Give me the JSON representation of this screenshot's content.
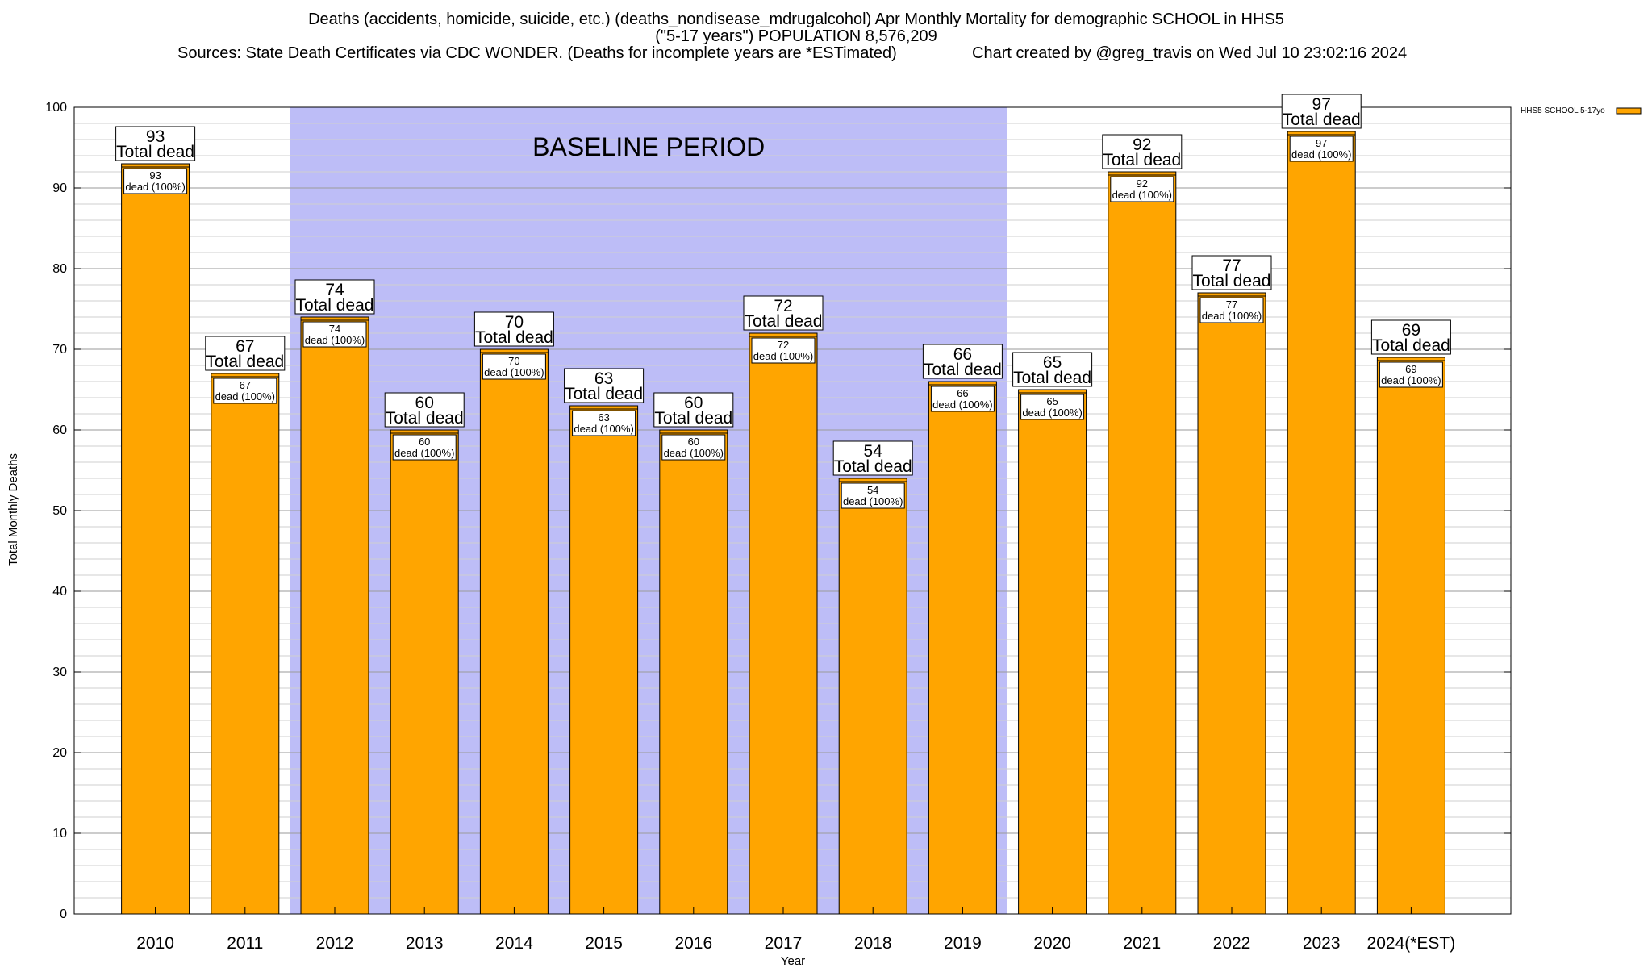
{
  "chart_data": {
    "type": "bar",
    "title_lines": [
      "Deaths (accidents, homicide, suicide, etc.) (deaths_nondisease_mdrugalcohol) Apr Monthly Mortality for demographic SCHOOL in HHS5",
      "(\"5-17 years\") POPULATION 8,576,209"
    ],
    "sources": "Sources: State Death Certificates via CDC WONDER. (Deaths for incomplete years are *ESTimated)",
    "created": "Chart created by @greg_travis on Wed Jul 10 23:02:16 2024",
    "xlabel": "Year",
    "ylabel": "Total Monthly Deaths",
    "ylim": [
      0,
      100
    ],
    "yticks": [
      0,
      10,
      20,
      30,
      40,
      50,
      60,
      70,
      80,
      90,
      100
    ],
    "grid": true,
    "categories": [
      "2010",
      "2011",
      "2012",
      "2013",
      "2014",
      "2015",
      "2016",
      "2017",
      "2018",
      "2019",
      "2020",
      "2021",
      "2022",
      "2023",
      "2024(*EST)"
    ],
    "series": [
      {
        "name": "HHS5 SCHOOL 5-17yo",
        "color": "#ffa500",
        "values": [
          93,
          67,
          74,
          60,
          70,
          63,
          60,
          72,
          54,
          66,
          65,
          92,
          77,
          97,
          69
        ]
      }
    ],
    "top_label_text": "Total dead",
    "inner_label_text": "dead (100%)",
    "baseline_band": {
      "label": "BASELINE PERIOD",
      "from": "2012",
      "to": "2019",
      "color": "#bdbdf7"
    },
    "legend_position": "top-right"
  }
}
